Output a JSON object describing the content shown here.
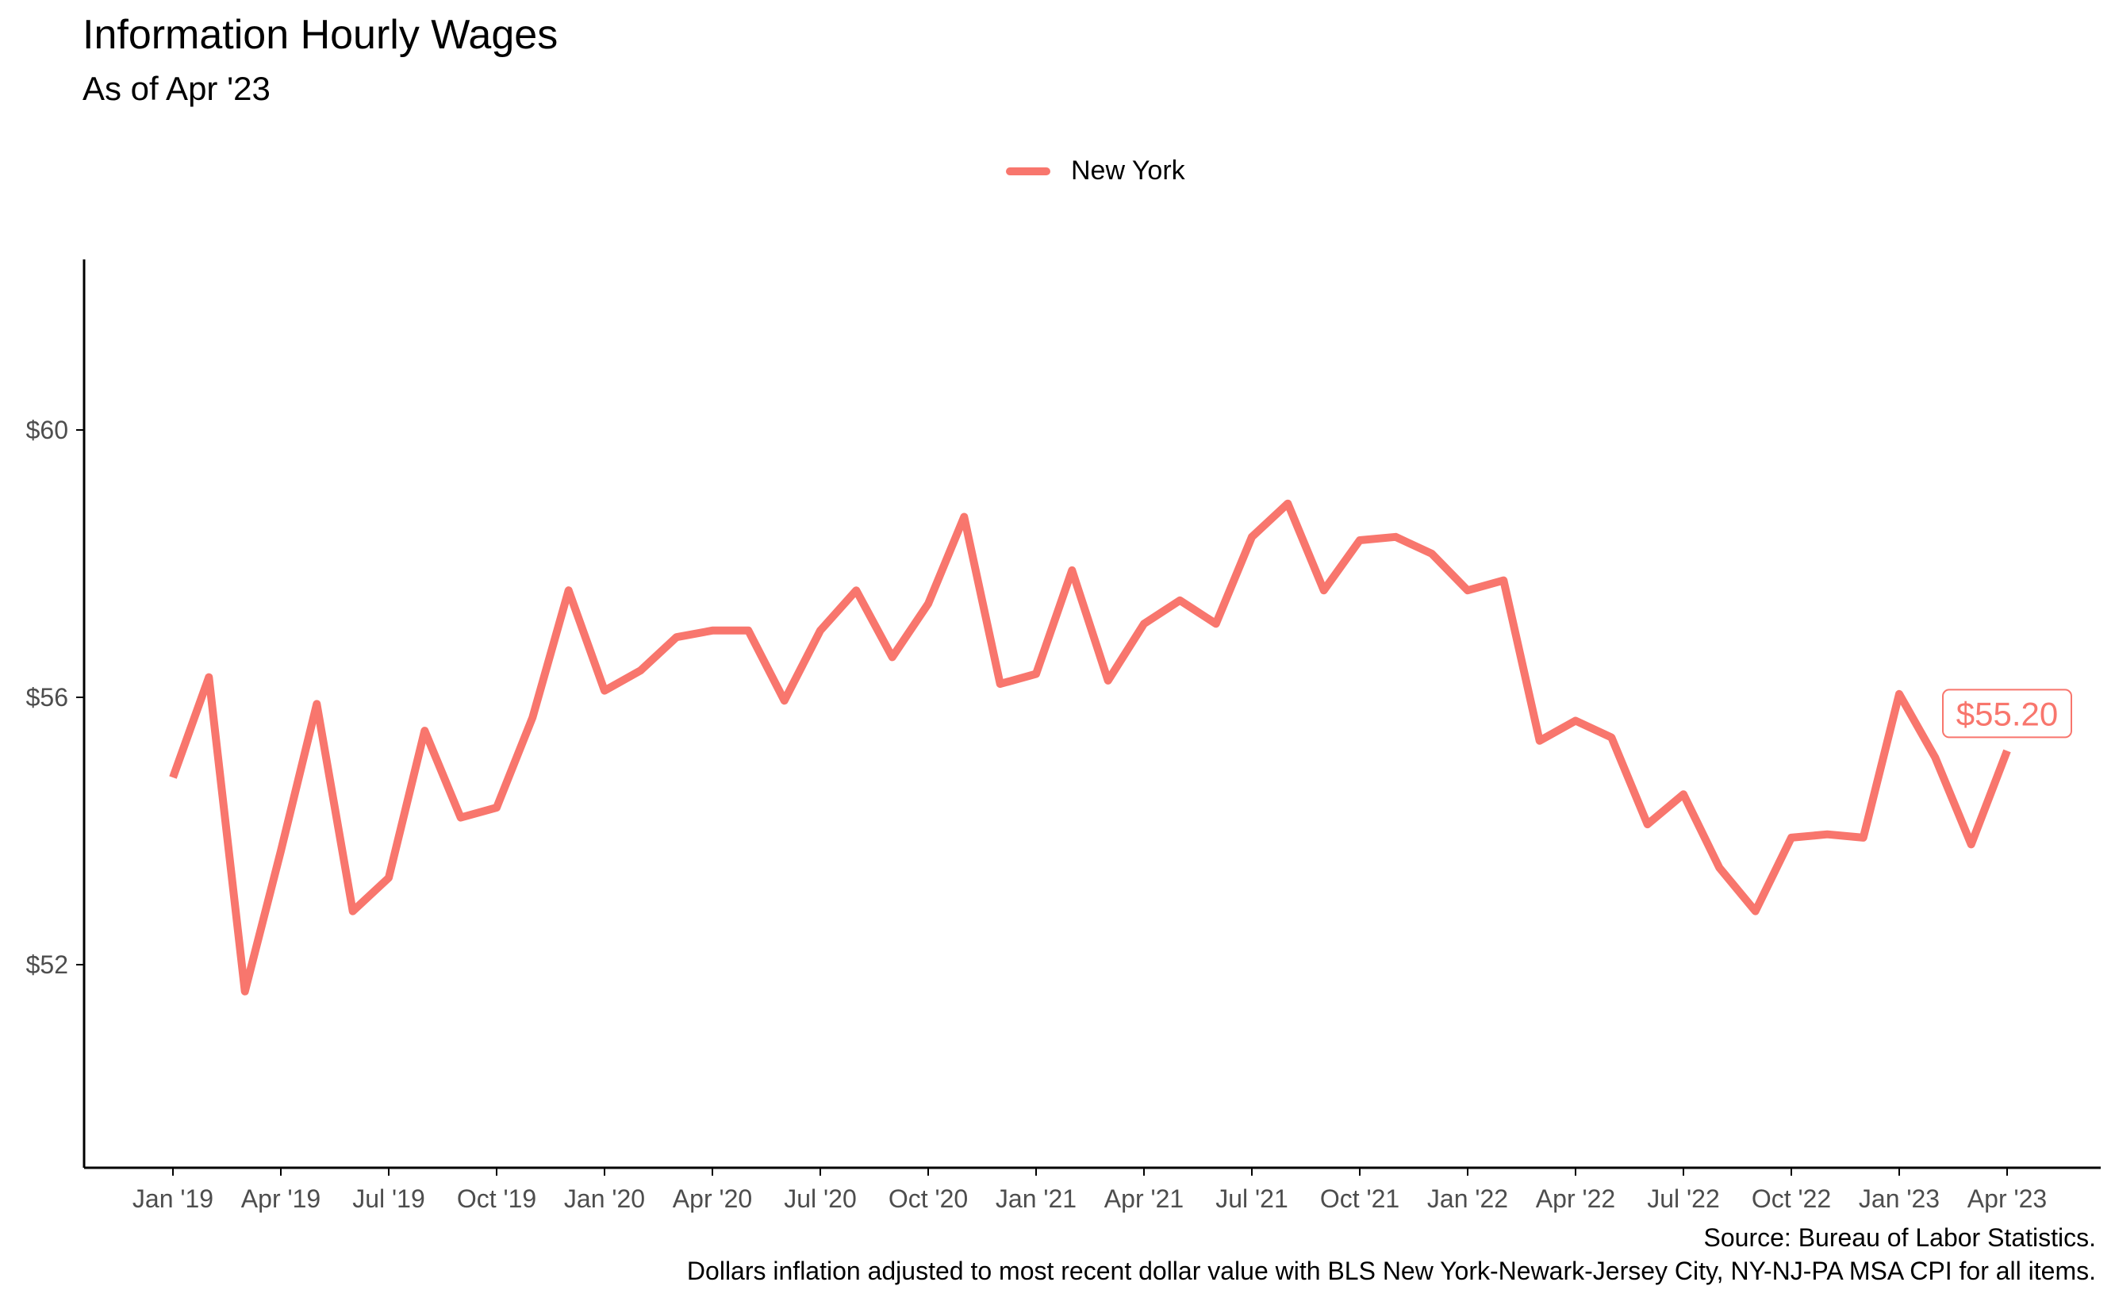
{
  "chart_data": {
    "type": "line",
    "title": "Information Hourly Wages",
    "subtitle": "As of Apr '23",
    "xlabel": "",
    "ylabel": "",
    "x": [
      "Jan '19",
      "Feb '19",
      "Mar '19",
      "Apr '19",
      "May '19",
      "Jun '19",
      "Jul '19",
      "Aug '19",
      "Sep '19",
      "Oct '19",
      "Nov '19",
      "Dec '19",
      "Jan '20",
      "Feb '20",
      "Mar '20",
      "Apr '20",
      "May '20",
      "Jun '20",
      "Jul '20",
      "Aug '20",
      "Sep '20",
      "Oct '20",
      "Nov '20",
      "Dec '20",
      "Jan '21",
      "Feb '21",
      "Mar '21",
      "Apr '21",
      "May '21",
      "Jun '21",
      "Jul '21",
      "Aug '21",
      "Sep '21",
      "Oct '21",
      "Nov '21",
      "Dec '21",
      "Jan '22",
      "Feb '22",
      "Mar '22",
      "Apr '22",
      "May '22",
      "Jun '22",
      "Jul '22",
      "Aug '22",
      "Sep '22",
      "Oct '22",
      "Nov '22",
      "Dec '22",
      "Jan '23",
      "Feb '23",
      "Mar '23",
      "Apr '23"
    ],
    "series": [
      {
        "name": "New York",
        "color": "#F8766D",
        "values": [
          54.8,
          56.3,
          51.6,
          53.7,
          55.9,
          52.8,
          53.3,
          55.5,
          54.2,
          54.35,
          55.7,
          57.6,
          56.1,
          56.4,
          56.9,
          57.0,
          57.0,
          55.95,
          57.0,
          57.6,
          56.6,
          57.4,
          58.7,
          56.2,
          56.35,
          57.9,
          56.25,
          57.1,
          57.45,
          57.1,
          58.4,
          58.9,
          57.6,
          58.35,
          58.4,
          58.15,
          57.6,
          57.75,
          55.35,
          55.65,
          55.4,
          54.1,
          54.55,
          53.45,
          52.8,
          53.9,
          53.95,
          53.9,
          56.05,
          55.1,
          53.8,
          55.2
        ]
      }
    ],
    "x_ticks": [
      "Jan '19",
      "Apr '19",
      "Jul '19",
      "Oct '19",
      "Jan '20",
      "Apr '20",
      "Jul '20",
      "Oct '20",
      "Jan '21",
      "Apr '21",
      "Jul '21",
      "Oct '21",
      "Jan '22",
      "Apr '22",
      "Jul '22",
      "Oct '22",
      "Jan '23",
      "Apr '23"
    ],
    "y_ticks": [
      52,
      56,
      60
    ],
    "y_tick_labels": [
      "$52",
      "$56",
      "$60"
    ],
    "ylim": [
      49,
      62.5
    ],
    "grid": false,
    "legend": {
      "position": "top",
      "entries": [
        "New York"
      ]
    },
    "end_label": "$55.20",
    "source_note": "Source: Bureau of Labor Statistics.",
    "adjustment_note": "Dollars inflation adjusted to most recent dollar value with BLS New York-Newark-Jersey City, NY-NJ-PA MSA CPI for all items."
  }
}
